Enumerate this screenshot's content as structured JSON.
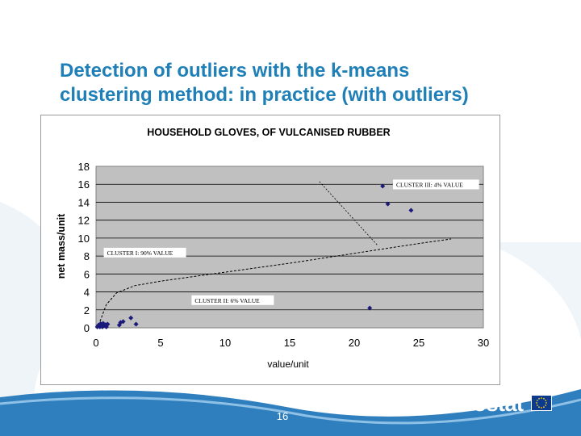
{
  "slide": {
    "title_line1": "Detection of outliers with the k-means",
    "title_line2": "clustering method: in practice (with outliers)",
    "page_number": "16",
    "logo_text": "eurostat"
  },
  "colors": {
    "title": "#1f7fb7",
    "plot_bg": "#c0c0c0",
    "points": "#1a1a7a",
    "footer_wave": "#2f7fbf"
  },
  "chart_data": {
    "type": "scatter",
    "title": "HOUSEHOLD GLOVES, OF VULCANISED RUBBER",
    "xlabel": "value/unit",
    "ylabel": "net mass/unit",
    "xlim": [
      0,
      30
    ],
    "ylim": [
      0,
      18
    ],
    "xticks": [
      0,
      5,
      10,
      15,
      20,
      25,
      30
    ],
    "yticks": [
      0,
      2,
      4,
      6,
      8,
      10,
      12,
      14,
      16,
      18
    ],
    "grid": "horizontal",
    "points": [
      {
        "x": 0.1,
        "y": 0.1
      },
      {
        "x": 0.2,
        "y": 0.3
      },
      {
        "x": 0.3,
        "y": 0.1
      },
      {
        "x": 0.4,
        "y": 0.2
      },
      {
        "x": 0.5,
        "y": 0.1
      },
      {
        "x": 0.6,
        "y": 0.3
      },
      {
        "x": 0.7,
        "y": 0.2
      },
      {
        "x": 0.8,
        "y": 0.1
      },
      {
        "x": 0.9,
        "y": 0.4
      },
      {
        "x": 0.35,
        "y": 0.45
      },
      {
        "x": 0.55,
        "y": 0.5
      },
      {
        "x": 0.75,
        "y": 0.35
      },
      {
        "x": 1.8,
        "y": 0.3
      },
      {
        "x": 1.9,
        "y": 0.6
      },
      {
        "x": 2.1,
        "y": 0.7
      },
      {
        "x": 2.7,
        "y": 1.1
      },
      {
        "x": 3.1,
        "y": 0.4
      },
      {
        "x": 21.2,
        "y": 2.2
      },
      {
        "x": 22.2,
        "y": 15.8
      },
      {
        "x": 22.6,
        "y": 13.8
      },
      {
        "x": 24.4,
        "y": 13.1
      }
    ],
    "trend_curve": [
      {
        "x": 0.2,
        "y": 0.3
      },
      {
        "x": 0.8,
        "y": 2.6
      },
      {
        "x": 1.6,
        "y": 3.9
      },
      {
        "x": 3.0,
        "y": 4.7
      },
      {
        "x": 5.0,
        "y": 5.2
      },
      {
        "x": 10.0,
        "y": 6.2
      },
      {
        "x": 15.0,
        "y": 7.2
      },
      {
        "x": 20.0,
        "y": 8.3
      },
      {
        "x": 25.0,
        "y": 9.4
      },
      {
        "x": 27.5,
        "y": 9.9
      }
    ],
    "leader_line": [
      {
        "x": 17.3,
        "y": 16.3
      },
      {
        "x": 21.8,
        "y": 9.2
      }
    ],
    "annotations": [
      {
        "text": "CLUSTER III: 4% VALUE",
        "x": 23.0,
        "y": 15.8
      },
      {
        "text": "CLUSTER I: 90% VALUE",
        "x": 0.6,
        "y": 8.2
      },
      {
        "text": "CLUSTER II: 6% VALUE",
        "x": 7.4,
        "y": 2.9
      }
    ]
  }
}
